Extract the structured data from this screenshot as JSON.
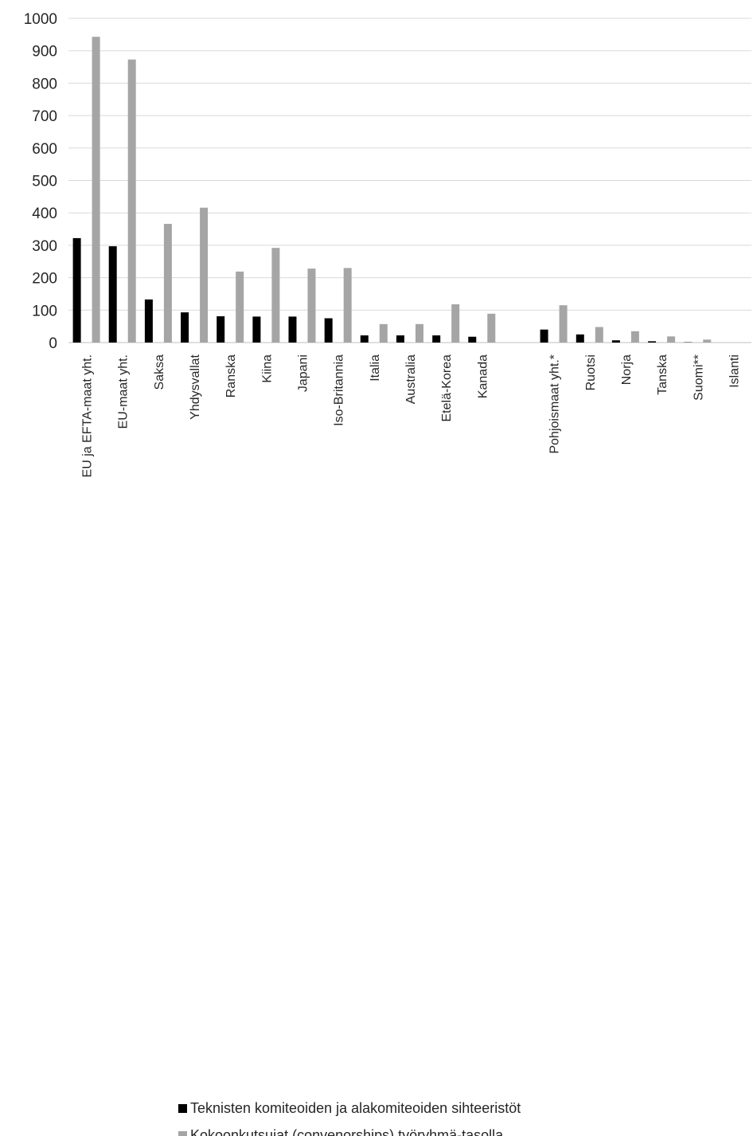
{
  "chart_data": {
    "type": "bar",
    "categories": [
      "EU ja EFTA-maat yht.",
      "EU-maat yht.",
      "Saksa",
      "Yhdysvallat",
      "Ranska",
      "Kiina",
      "Japani",
      "Iso-Britannia",
      "Italia",
      "Australia",
      "Etelä-Korea",
      "Kanada",
      "",
      "Pohjoismaat yht.*",
      "Ruotsi",
      "Norja",
      "Tanska",
      "Suomi**",
      "Islanti"
    ],
    "series": [
      {
        "name": "Teknisten komiteoiden ja alakomiteoiden sihteeristöt",
        "color": "#000000",
        "values": [
          322,
          297,
          133,
          93,
          81,
          80,
          80,
          75,
          22,
          22,
          22,
          18,
          null,
          40,
          25,
          7,
          4,
          1,
          0
        ]
      },
      {
        "name": "Kokoonkutsujat (convenorships) työryhmä-tasolla",
        "color": "#a5a5a5",
        "values": [
          943,
          873,
          366,
          416,
          219,
          292,
          228,
          230,
          57,
          57,
          118,
          89,
          null,
          115,
          48,
          35,
          19,
          9,
          0
        ]
      }
    ],
    "yticks": [
      "0",
      "100",
      "200",
      "300",
      "400",
      "500",
      "600",
      "700",
      "800",
      "900",
      "1000"
    ],
    "ylim": [
      0,
      1000
    ],
    "grid": true,
    "legend_position": "bottom",
    "title": "",
    "xlabel": "",
    "ylabel": ""
  }
}
